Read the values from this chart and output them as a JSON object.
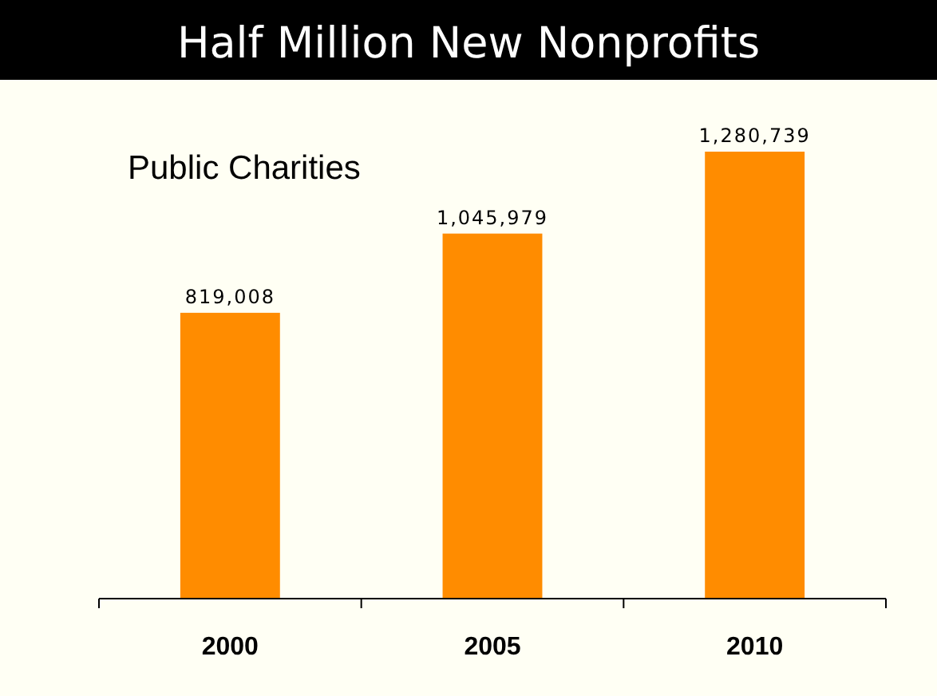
{
  "chart_data": {
    "type": "bar",
    "title": "Half Million New Nonprofits",
    "subtitle": "Public Charities",
    "categories": [
      "2000",
      "2005",
      "2010"
    ],
    "values": [
      819008,
      1045979,
      1280739
    ],
    "value_labels": [
      "819,008",
      "1,045,979",
      "1,280,739"
    ],
    "color": "#ff8c00",
    "tick_labels": "x",
    "grid": false
  }
}
